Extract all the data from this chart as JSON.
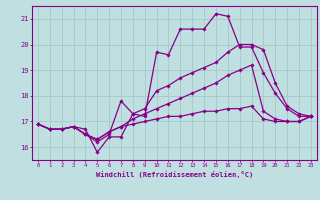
{
  "bg_color": "#c0dfe0",
  "grid_color": "#a8cccc",
  "line_color": "#880088",
  "xlabel": "Windchill (Refroidissement éolien,°C)",
  "xlim": [
    -0.5,
    23.5
  ],
  "ylim": [
    15.5,
    21.5
  ],
  "yticks": [
    16,
    17,
    18,
    19,
    20,
    21
  ],
  "xticks": [
    0,
    1,
    2,
    3,
    4,
    5,
    6,
    7,
    8,
    9,
    10,
    11,
    12,
    13,
    14,
    15,
    16,
    17,
    18,
    19,
    20,
    21,
    22,
    23
  ],
  "series": [
    {
      "x": [
        0,
        1,
        2,
        3,
        4,
        5,
        6,
        7,
        8,
        9,
        10,
        11,
        12,
        13,
        14,
        15,
        16,
        17,
        18,
        19,
        20,
        21,
        22,
        23
      ],
      "y": [
        16.9,
        16.7,
        16.7,
        16.8,
        16.7,
        15.8,
        16.4,
        16.4,
        17.3,
        17.2,
        19.7,
        19.6,
        20.6,
        20.6,
        20.6,
        21.2,
        21.1,
        19.9,
        19.9,
        18.9,
        18.1,
        17.5,
        17.2,
        17.2
      ]
    },
    {
      "x": [
        0,
        1,
        2,
        3,
        4,
        5,
        6,
        7,
        8,
        9,
        10,
        11,
        12,
        13,
        14,
        15,
        16,
        17,
        18,
        19,
        20,
        21,
        22,
        23
      ],
      "y": [
        16.9,
        16.7,
        16.7,
        16.8,
        16.5,
        16.2,
        16.5,
        17.8,
        17.3,
        17.5,
        18.2,
        18.4,
        18.7,
        18.9,
        19.1,
        19.3,
        19.7,
        20.0,
        20.0,
        19.8,
        18.5,
        17.6,
        17.3,
        17.2
      ]
    },
    {
      "x": [
        0,
        1,
        2,
        3,
        4,
        5,
        6,
        7,
        8,
        9,
        10,
        11,
        12,
        13,
        14,
        15,
        16,
        17,
        18,
        19,
        20,
        21,
        22,
        23
      ],
      "y": [
        16.9,
        16.7,
        16.7,
        16.8,
        16.5,
        16.3,
        16.6,
        16.8,
        17.1,
        17.3,
        17.5,
        17.7,
        17.9,
        18.1,
        18.3,
        18.5,
        18.8,
        19.0,
        19.2,
        17.4,
        17.1,
        17.0,
        17.0,
        17.2
      ]
    },
    {
      "x": [
        0,
        1,
        2,
        3,
        4,
        5,
        6,
        7,
        8,
        9,
        10,
        11,
        12,
        13,
        14,
        15,
        16,
        17,
        18,
        19,
        20,
        21,
        22,
        23
      ],
      "y": [
        16.9,
        16.7,
        16.7,
        16.8,
        16.5,
        16.3,
        16.6,
        16.8,
        16.9,
        17.0,
        17.1,
        17.2,
        17.2,
        17.3,
        17.4,
        17.4,
        17.5,
        17.5,
        17.6,
        17.1,
        17.0,
        17.0,
        17.0,
        17.2
      ]
    }
  ]
}
